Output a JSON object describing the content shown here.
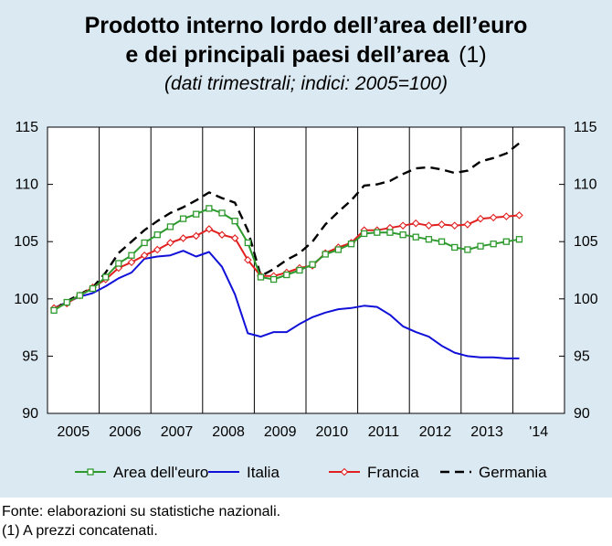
{
  "chart_data": {
    "type": "line",
    "title_line1": "Prodotto interno lordo dell’area dell’euro",
    "title_line2": "e dei principali paesi dell’area",
    "title_note": "(1)",
    "subtitle": "(dati trimestrali; indici: 2005=100)",
    "x_labels": [
      "2005",
      "2006",
      "2007",
      "2008",
      "2009",
      "2010",
      "2011",
      "2012",
      "2013",
      "'14"
    ],
    "y_ticks": [
      "90",
      "95",
      "100",
      "105",
      "110",
      "115"
    ],
    "ylim": [
      90,
      115
    ],
    "x_quarters": [
      "2005Q1",
      "2005Q2",
      "2005Q3",
      "2005Q4",
      "2006Q1",
      "2006Q2",
      "2006Q3",
      "2006Q4",
      "2007Q1",
      "2007Q2",
      "2007Q3",
      "2007Q4",
      "2008Q1",
      "2008Q2",
      "2008Q3",
      "2008Q4",
      "2009Q1",
      "2009Q2",
      "2009Q3",
      "2009Q4",
      "2010Q1",
      "2010Q2",
      "2010Q3",
      "2010Q4",
      "2011Q1",
      "2011Q2",
      "2011Q3",
      "2011Q4",
      "2012Q1",
      "2012Q2",
      "2012Q3",
      "2012Q4",
      "2013Q1",
      "2013Q2",
      "2013Q3",
      "2013Q4",
      "2014Q1"
    ],
    "grid": "vertical year separators",
    "legend_position": "bottom",
    "series": [
      {
        "name": "Area dell'euro",
        "color": "#2e9a2e",
        "style": "line-square-markers",
        "values": [
          99.0,
          99.7,
          100.3,
          100.9,
          101.9,
          103.1,
          103.8,
          104.9,
          105.6,
          106.3,
          107.0,
          107.4,
          107.9,
          107.5,
          106.8,
          104.9,
          101.9,
          101.7,
          102.1,
          102.5,
          103.0,
          103.9,
          104.3,
          104.8,
          105.7,
          105.8,
          105.8,
          105.6,
          105.4,
          105.2,
          105.0,
          104.5,
          104.3,
          104.6,
          104.8,
          105.0,
          105.2
        ]
      },
      {
        "name": "Italia",
        "color": "#1010d8",
        "style": "solid",
        "values": [
          99.2,
          99.7,
          100.2,
          100.5,
          101.1,
          101.8,
          102.3,
          103.5,
          103.7,
          103.8,
          104.2,
          103.7,
          104.1,
          102.8,
          100.4,
          97.0,
          96.7,
          97.1,
          97.1,
          97.8,
          98.4,
          98.8,
          99.1,
          99.2,
          99.4,
          99.3,
          98.6,
          97.6,
          97.1,
          96.7,
          95.9,
          95.3,
          95.0,
          94.9,
          94.9,
          94.8,
          94.8
        ]
      },
      {
        "name": "Francia",
        "color": "#e02020",
        "style": "line-diamond-markers",
        "values": [
          99.2,
          99.6,
          100.3,
          101.0,
          101.7,
          102.7,
          103.2,
          103.8,
          104.3,
          104.9,
          105.3,
          105.5,
          106.1,
          105.6,
          105.3,
          103.4,
          102.0,
          102.0,
          102.3,
          102.7,
          102.9,
          104.0,
          104.5,
          104.9,
          106.0,
          106.0,
          106.2,
          106.4,
          106.6,
          106.4,
          106.5,
          106.4,
          106.5,
          107.0,
          107.1,
          107.2,
          107.3
        ]
      },
      {
        "name": "Germania",
        "color": "#000000",
        "style": "dashed",
        "values": [
          99.1,
          99.8,
          100.4,
          101.0,
          102.3,
          104.0,
          105.0,
          106.0,
          106.8,
          107.5,
          108.0,
          108.6,
          109.3,
          108.8,
          108.4,
          106.0,
          102.0,
          102.6,
          103.4,
          104.0,
          105.0,
          106.5,
          107.6,
          108.6,
          109.9,
          110.0,
          110.3,
          110.9,
          111.4,
          111.5,
          111.3,
          111.0,
          111.2,
          112.0,
          112.3,
          112.7,
          113.6
        ]
      }
    ]
  },
  "notes": {
    "source": "Fonte: elaborazioni su statistiche nazionali.",
    "footnote": "(1) A prezzi concatenati."
  }
}
